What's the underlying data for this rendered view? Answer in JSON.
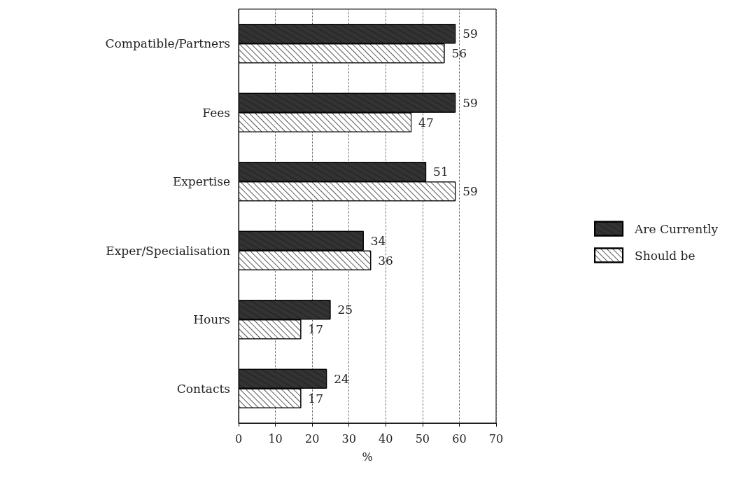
{
  "chart_data": {
    "type": "bar",
    "orientation": "horizontal",
    "xlabel": "%",
    "categories": [
      "Compatible/Partners",
      "Fees",
      "Expertise",
      "Exper/Specialisation",
      "Hours",
      "Contacts"
    ],
    "series": [
      {
        "name": "Are Currently",
        "color": "#333333",
        "values": [
          59,
          59,
          51,
          34,
          25,
          24
        ]
      },
      {
        "name": "Should be",
        "color": "#ffffff",
        "values": [
          56,
          47,
          59,
          36,
          17,
          17
        ]
      }
    ],
    "xlim": [
      0,
      70
    ],
    "xticks": [
      0,
      10,
      20,
      30,
      40,
      50,
      60,
      70
    ],
    "grid": "x",
    "legend": "right",
    "data_labels": true
  }
}
